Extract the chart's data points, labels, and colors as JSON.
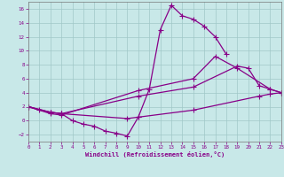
{
  "background_color": "#c8e8e8",
  "grid_color": "#a0c8c8",
  "line_color": "#880088",
  "marker": "+",
  "markersize": 4,
  "linewidth": 0.9,
  "xlim": [
    0,
    23
  ],
  "ylim": [
    -3,
    17
  ],
  "xticks": [
    0,
    1,
    2,
    3,
    4,
    5,
    6,
    7,
    8,
    9,
    10,
    11,
    12,
    13,
    14,
    15,
    16,
    17,
    18,
    19,
    20,
    21,
    22,
    23
  ],
  "yticks": [
    -2,
    0,
    2,
    4,
    6,
    8,
    10,
    12,
    14,
    16
  ],
  "xlabel": "Windchill (Refroidissement éolien,°C)",
  "series1_x": [
    0,
    1,
    2,
    3,
    4,
    5,
    6,
    7,
    8,
    9,
    10,
    11,
    12,
    13,
    14,
    15,
    16,
    17,
    18
  ],
  "series1_y": [
    2.0,
    1.5,
    1.2,
    1.0,
    0.0,
    -0.5,
    -0.8,
    -1.5,
    -1.8,
    -2.2,
    0.5,
    4.5,
    13.0,
    16.5,
    15.0,
    14.5,
    13.5,
    12.0,
    9.5
  ],
  "series2_x": [
    0,
    2,
    3,
    10,
    15,
    17,
    19,
    22,
    23
  ],
  "series2_y": [
    2.0,
    1.0,
    0.8,
    4.3,
    6.0,
    9.2,
    7.5,
    4.5,
    4.0
  ],
  "series3_x": [
    0,
    2,
    3,
    10,
    15,
    19,
    20,
    21,
    22,
    23
  ],
  "series3_y": [
    2.0,
    1.2,
    1.0,
    3.5,
    4.8,
    7.8,
    7.5,
    5.0,
    4.5,
    4.0
  ],
  "series4_x": [
    0,
    2,
    3,
    9,
    10,
    15,
    21,
    22,
    23
  ],
  "series4_y": [
    2.0,
    1.2,
    1.0,
    0.3,
    0.5,
    1.5,
    3.5,
    3.8,
    4.0
  ]
}
